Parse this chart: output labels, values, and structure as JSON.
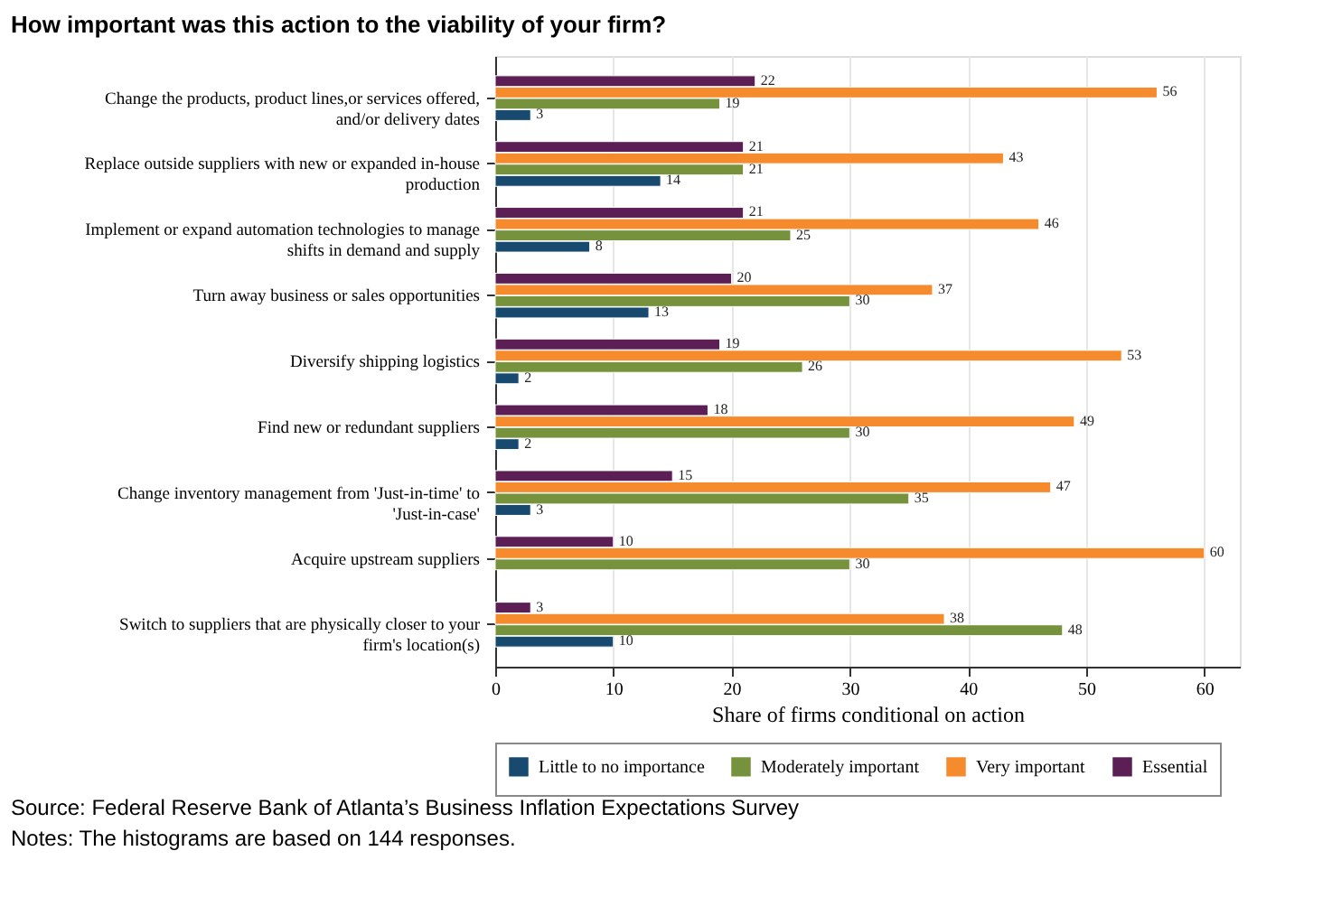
{
  "chart_data": {
    "type": "bar",
    "orientation": "horizontal",
    "title": "How important was this action to the viability of your firm?",
    "xlabel": "Share of firms conditional on action",
    "categories": [
      "Change the products, product lines,or services offered, and/or delivery dates",
      "Replace outside suppliers with new or expanded in-house production",
      "Implement or expand automation technologies to manage shifts in demand and supply",
      "Turn away business or sales opportunities",
      "Diversify shipping logistics",
      "Find new or redundant suppliers",
      "Change inventory management from 'Just-in-time' to 'Just-in-case'",
      "Acquire upstream suppliers",
      "Switch to suppliers that are physically closer to your firm's location(s)"
    ],
    "series": [
      {
        "name": "Little to no importance",
        "color": "#174a6e",
        "values": [
          3,
          14,
          8,
          13,
          2,
          2,
          3,
          null,
          10
        ]
      },
      {
        "name": "Moderately important",
        "color": "#76923c",
        "values": [
          19,
          21,
          25,
          30,
          26,
          30,
          35,
          30,
          48
        ]
      },
      {
        "name": "Very important",
        "color": "#f58b2d",
        "values": [
          56,
          43,
          46,
          37,
          53,
          49,
          47,
          60,
          38
        ]
      },
      {
        "name": "Essential",
        "color": "#5b1f55",
        "values": [
          22,
          21,
          21,
          20,
          19,
          18,
          15,
          10,
          3
        ]
      }
    ],
    "xlim": [
      0,
      63
    ],
    "xticks": [
      0,
      10,
      20,
      30,
      40,
      50,
      60
    ],
    "grid": "x",
    "legend": "bottom",
    "data_labels": true,
    "annotations": [
      "Source: Federal Reserve Bank of Atlanta’s Business Inflation Expectations Survey",
      "Notes: The histograms are based on 144 responses."
    ]
  }
}
